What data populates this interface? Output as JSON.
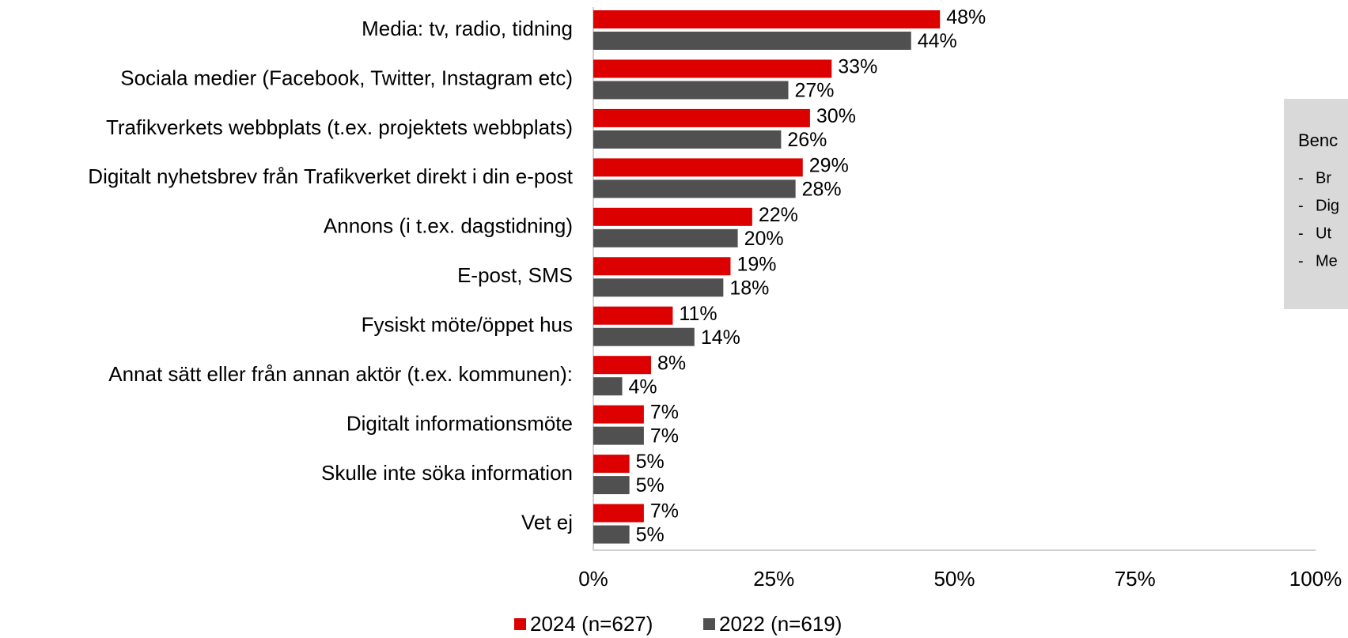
{
  "chart_data": {
    "type": "bar",
    "orientation": "horizontal",
    "categories": [
      "Media: tv, radio, tidning",
      "Sociala medier (Facebook, Twitter, Instagram etc)",
      "Trafikverkets webbplats (t.ex. projektets webbplats)",
      "Digitalt nyhetsbrev från Trafikverket direkt i din e-post",
      "Annons (i t.ex. dagstidning)",
      "E-post, SMS",
      "Fysiskt möte/öppet hus",
      "Annat sätt eller från annan aktör (t.ex. kommunen):",
      "Digitalt informationsmöte",
      "Skulle inte söka information",
      "Vet ej"
    ],
    "series": [
      {
        "name": "2024 (n=627)",
        "color": "#dc0000",
        "values": [
          48,
          33,
          30,
          29,
          22,
          19,
          11,
          8,
          7,
          5,
          7
        ],
        "value_labels": [
          "48%",
          "33%",
          "30%",
          "29%",
          "22%",
          "19%",
          "11%",
          "8%",
          "7%",
          "5%",
          "7%"
        ]
      },
      {
        "name": "2022 (n=619)",
        "color": "#505050",
        "values": [
          44,
          27,
          26,
          28,
          20,
          18,
          14,
          4,
          7,
          5,
          5
        ],
        "value_labels": [
          "44%",
          "27%",
          "26%",
          "28%",
          "20%",
          "18%",
          "14%",
          "4%",
          "7%",
          "5%",
          "5%"
        ]
      }
    ],
    "xlim": [
      0,
      100
    ],
    "xticks": [
      {
        "value": 0,
        "label": "0%"
      },
      {
        "value": 25,
        "label": "25%"
      },
      {
        "value": 50,
        "label": "50%"
      },
      {
        "value": 75,
        "label": "75%"
      },
      {
        "value": 100,
        "label": "100%"
      }
    ],
    "legend": "bottom",
    "side_box": {
      "title": "Benc",
      "items": [
        "Br",
        "Dig",
        "Ut",
        "Me"
      ]
    }
  }
}
